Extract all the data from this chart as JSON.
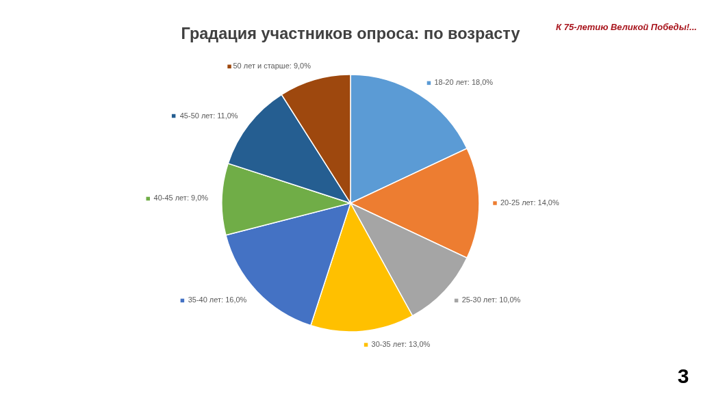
{
  "chart_data": {
    "type": "pie",
    "title": "Градация участников опроса: по возрасту",
    "categories": [
      "18-20 лет",
      "20-25 лет",
      "25-30 лет",
      "30-35 лет",
      "35-40 лет",
      "40-45 лет",
      "45-50 лет",
      "50 лет и старше"
    ],
    "values": [
      18,
      14,
      10,
      13,
      16,
      9,
      11,
      9
    ],
    "value_labels": [
      "18,0%",
      "14,0%",
      "10,0%",
      "13,0%",
      "16,0%",
      "9,0%",
      "11,0%",
      "9,0%"
    ],
    "colors": [
      "#5b9bd5",
      "#ed7d31",
      "#a5a5a5",
      "#ffc000",
      "#4472c4",
      "#70ad47",
      "#255e91",
      "#9e480e"
    ],
    "legend": "bottom right",
    "annotations": [
      "К 75-летию Великой Победы!...",
      "3"
    ]
  }
}
